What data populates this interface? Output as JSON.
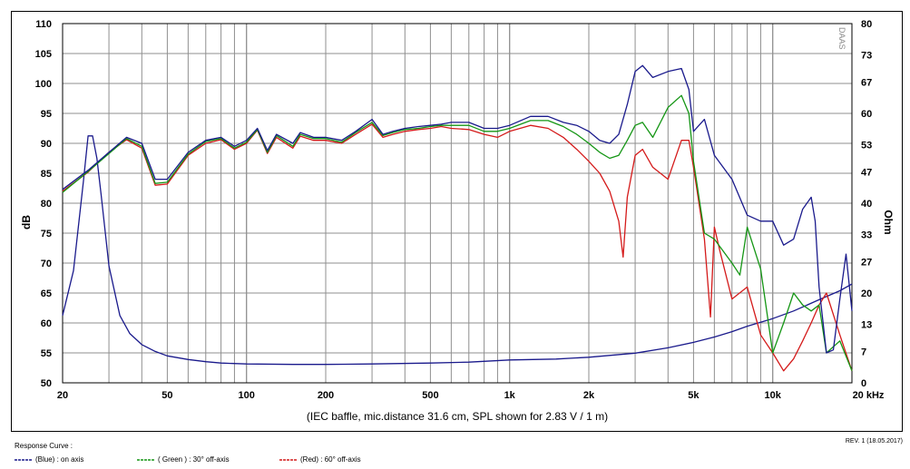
{
  "chart_data": {
    "type": "line",
    "caption": "(IEC baffle, mic.distance 31.6 cm, SPL shown for 2.83 V / 1 m)",
    "logo_text": "DAAS",
    "xlabel": "",
    "ylabel": "dB",
    "y2label": "Ohm",
    "xscale": "log",
    "xlim": [
      20,
      20000
    ],
    "ylim": [
      50,
      110
    ],
    "y2lim": [
      0,
      80
    ],
    "x_tick_values": [
      20,
      50,
      100,
      200,
      500,
      1000,
      2000,
      5000,
      10000,
      20000
    ],
    "x_tick_labels": [
      "20",
      "50",
      "100",
      "200",
      "500",
      "1k",
      "2k",
      "5k",
      "10k",
      "20 kHz"
    ],
    "y_ticks": [
      50,
      55,
      60,
      65,
      70,
      75,
      80,
      85,
      90,
      95,
      100,
      105,
      110
    ],
    "y2_ticks": [
      0,
      7,
      13,
      20,
      27,
      33,
      40,
      47,
      53,
      60,
      67,
      73,
      80
    ],
    "grid": true,
    "series": [
      {
        "name": "(Blue) : on axis",
        "color": "#1a1a8c",
        "x": [
          20,
          25,
          30,
          35,
          40,
          45,
          50,
          60,
          70,
          80,
          90,
          100,
          110,
          120,
          130,
          150,
          160,
          180,
          200,
          230,
          260,
          300,
          330,
          360,
          400,
          450,
          500,
          550,
          600,
          700,
          800,
          900,
          1000,
          1200,
          1400,
          1600,
          1800,
          2000,
          2200,
          2400,
          2600,
          2800,
          3000,
          3200,
          3500,
          4000,
          4500,
          4800,
          5000,
          5500,
          6000,
          7000,
          8000,
          9000,
          10000,
          11000,
          12000,
          13000,
          14000,
          14500,
          15000,
          16000,
          17000,
          18000,
          19000,
          20000
        ],
        "y": [
          82.3,
          85.5,
          88.5,
          91,
          90,
          84,
          84,
          88.5,
          90.5,
          91,
          89.5,
          90.5,
          92.5,
          88.8,
          91.5,
          90,
          91.8,
          91,
          91,
          90.5,
          92,
          94,
          91.5,
          92,
          92.5,
          92.8,
          93,
          93.2,
          93.5,
          93.5,
          92.5,
          92.5,
          93,
          94.5,
          94.5,
          93.5,
          93,
          92,
          90.5,
          90,
          91.5,
          96.5,
          102,
          103,
          101,
          102,
          102.5,
          99,
          92,
          94,
          88,
          84,
          78,
          77,
          77,
          73,
          74,
          79,
          81,
          77,
          66,
          55,
          55.5,
          64,
          71.5,
          62
        ]
      },
      {
        "name": "( Green ) : 30° off-axis",
        "color": "#159615",
        "x": [
          20,
          25,
          30,
          35,
          40,
          45,
          50,
          60,
          70,
          80,
          90,
          100,
          110,
          120,
          130,
          150,
          160,
          180,
          200,
          230,
          260,
          300,
          330,
          360,
          400,
          450,
          500,
          550,
          600,
          700,
          800,
          900,
          1000,
          1200,
          1400,
          1600,
          1800,
          2000,
          2200,
          2400,
          2600,
          2800,
          3000,
          3200,
          3500,
          4000,
          4500,
          4800,
          5000,
          5500,
          6000,
          7000,
          7500,
          8000,
          9000,
          10000,
          11000,
          12000,
          13000,
          14000,
          15000,
          16000,
          18000,
          20000
        ],
        "y": [
          81.8,
          85.3,
          88.3,
          90.8,
          89.5,
          83.3,
          83.5,
          88.2,
          90.3,
          90.8,
          89.2,
          90.2,
          92.3,
          88.5,
          91.3,
          89.5,
          91.5,
          90.8,
          90.8,
          90.2,
          91.8,
          93.5,
          91.3,
          91.8,
          92.3,
          92.5,
          92.8,
          93,
          93,
          93,
          92,
          92,
          92.5,
          93.8,
          93.8,
          92.8,
          91.5,
          90,
          88.5,
          87.5,
          88,
          90.5,
          93,
          93.5,
          91,
          96,
          98,
          95,
          87,
          75,
          74,
          70,
          68,
          76,
          69,
          55,
          60,
          65,
          63,
          62,
          63,
          55,
          57,
          52
        ]
      },
      {
        "name": "(Red) : 60° off-axis",
        "color": "#d41a1a",
        "x": [
          20,
          25,
          30,
          35,
          40,
          45,
          50,
          60,
          70,
          80,
          90,
          100,
          110,
          120,
          130,
          150,
          160,
          180,
          200,
          230,
          260,
          300,
          330,
          360,
          400,
          450,
          500,
          550,
          600,
          700,
          800,
          900,
          1000,
          1200,
          1400,
          1600,
          1800,
          2000,
          2200,
          2400,
          2600,
          2700,
          2800,
          3000,
          3200,
          3500,
          4000,
          4500,
          4800,
          5000,
          5500,
          5800,
          6000,
          6300,
          7000,
          8000,
          9000,
          10000,
          11000,
          12000,
          13000,
          14000,
          15000,
          16000,
          18000,
          20000
        ],
        "y": [
          82,
          85.2,
          88.5,
          90.6,
          89.2,
          83,
          83.2,
          88,
          90,
          90.6,
          89,
          90,
          92.2,
          88.3,
          91,
          89.2,
          91.2,
          90.5,
          90.5,
          90,
          91.5,
          93.2,
          91,
          91.5,
          92,
          92.3,
          92.5,
          92.8,
          92.5,
          92.3,
          91.5,
          91,
          92,
          93,
          92.5,
          91,
          89,
          87,
          85,
          82,
          77,
          71,
          81,
          88,
          89,
          86,
          84,
          90.5,
          90.5,
          86,
          74,
          61,
          76,
          72,
          64,
          66,
          58,
          55,
          52,
          54,
          57,
          60,
          63,
          65,
          58,
          52
        ]
      },
      {
        "name": "Impedance",
        "axis": "right",
        "color": "#1a1a8c",
        "x": [
          20,
          22,
          24,
          25,
          26,
          27,
          28,
          30,
          33,
          36,
          40,
          45,
          50,
          60,
          70,
          80,
          100,
          150,
          200,
          300,
          500,
          700,
          1000,
          1500,
          2000,
          3000,
          4000,
          5000,
          6000,
          7000,
          8000,
          10000,
          12000,
          15000,
          18000,
          20000
        ],
        "y": [
          15,
          25,
          45,
          55,
          55,
          50,
          42,
          26,
          15,
          11,
          8.5,
          7,
          6,
          5.2,
          4.7,
          4.4,
          4.2,
          4.1,
          4.1,
          4.2,
          4.4,
          4.6,
          5.1,
          5.3,
          5.7,
          6.6,
          7.8,
          9,
          10.2,
          11.4,
          12.6,
          14.3,
          16,
          18.5,
          20.5,
          22
        ]
      }
    ]
  },
  "legend": {
    "title": "Response Curve :",
    "items": [
      {
        "label": "(Blue) : on axis",
        "color": "#1a1a8c"
      },
      {
        "label": "( Green ) : 30° off-axis",
        "color": "#159615"
      },
      {
        "label": "(Red) : 60° off-axis",
        "color": "#d41a1a"
      }
    ]
  },
  "revision": "REV. 1 (18.05.2017)"
}
